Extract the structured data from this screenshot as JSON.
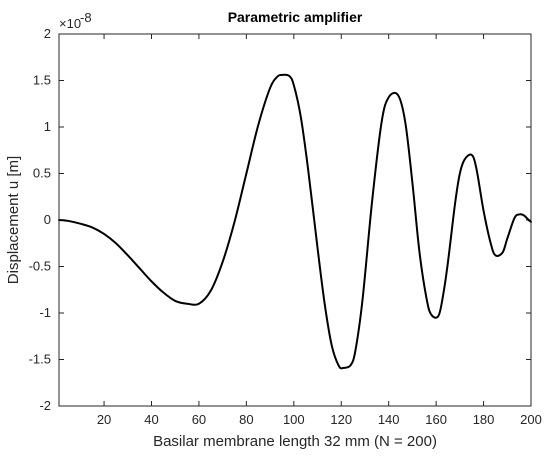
{
  "chart_data": {
    "type": "line",
    "title": "Parametric amplifier",
    "xlabel": "Basilar membrane length 32 mm  (N = 200)",
    "ylabel": "Displacement u [m]",
    "y_exponent_base": "×10",
    "y_exponent_power": "-8",
    "xlim": [
      1,
      200
    ],
    "ylim": [
      -2,
      2
    ],
    "xticks": [
      20,
      40,
      60,
      80,
      100,
      120,
      140,
      160,
      180,
      200
    ],
    "yticks": [
      -2,
      -1.5,
      -1,
      -0.5,
      0,
      0.5,
      1,
      1.5,
      2
    ],
    "ytick_labels": [
      "-2",
      "-1.5",
      "-1",
      "-0.5",
      "0",
      "0.5",
      "1",
      "1.5",
      "2"
    ],
    "grid": false,
    "box": true,
    "colors": {
      "line": "#000000",
      "axes": "#262626",
      "background": "#ffffff"
    },
    "series": [
      {
        "x": [
          1,
          5,
          10,
          15,
          20,
          25,
          30,
          35,
          40,
          45,
          50,
          55,
          60,
          65,
          70,
          75,
          80,
          85,
          90,
          93,
          95,
          98,
          100,
          103,
          106,
          110,
          113,
          116,
          119,
          121,
          124,
          126,
          129,
          133,
          137,
          140,
          144,
          147,
          150,
          153,
          156,
          158,
          161,
          163,
          165,
          168,
          170,
          172,
          175,
          177,
          180,
          183,
          185,
          188,
          190,
          193,
          195,
          197,
          199,
          200
        ],
        "y": [
          0,
          -0.01,
          -0.04,
          -0.08,
          -0.15,
          -0.25,
          -0.38,
          -0.52,
          -0.66,
          -0.78,
          -0.87,
          -0.9,
          -0.9,
          -0.76,
          -0.45,
          -0.02,
          0.5,
          1.02,
          1.42,
          1.54,
          1.56,
          1.55,
          1.45,
          1.1,
          0.55,
          -0.3,
          -0.9,
          -1.35,
          -1.57,
          -1.59,
          -1.56,
          -1.4,
          -0.85,
          0.2,
          1.05,
          1.32,
          1.34,
          1.05,
          0.4,
          -0.35,
          -0.85,
          -1.02,
          -1.03,
          -0.8,
          -0.45,
          0.18,
          0.5,
          0.65,
          0.7,
          0.55,
          0.1,
          -0.25,
          -0.38,
          -0.35,
          -0.2,
          0.02,
          0.06,
          0.05,
          0.0,
          -0.02
        ]
      }
    ]
  }
}
